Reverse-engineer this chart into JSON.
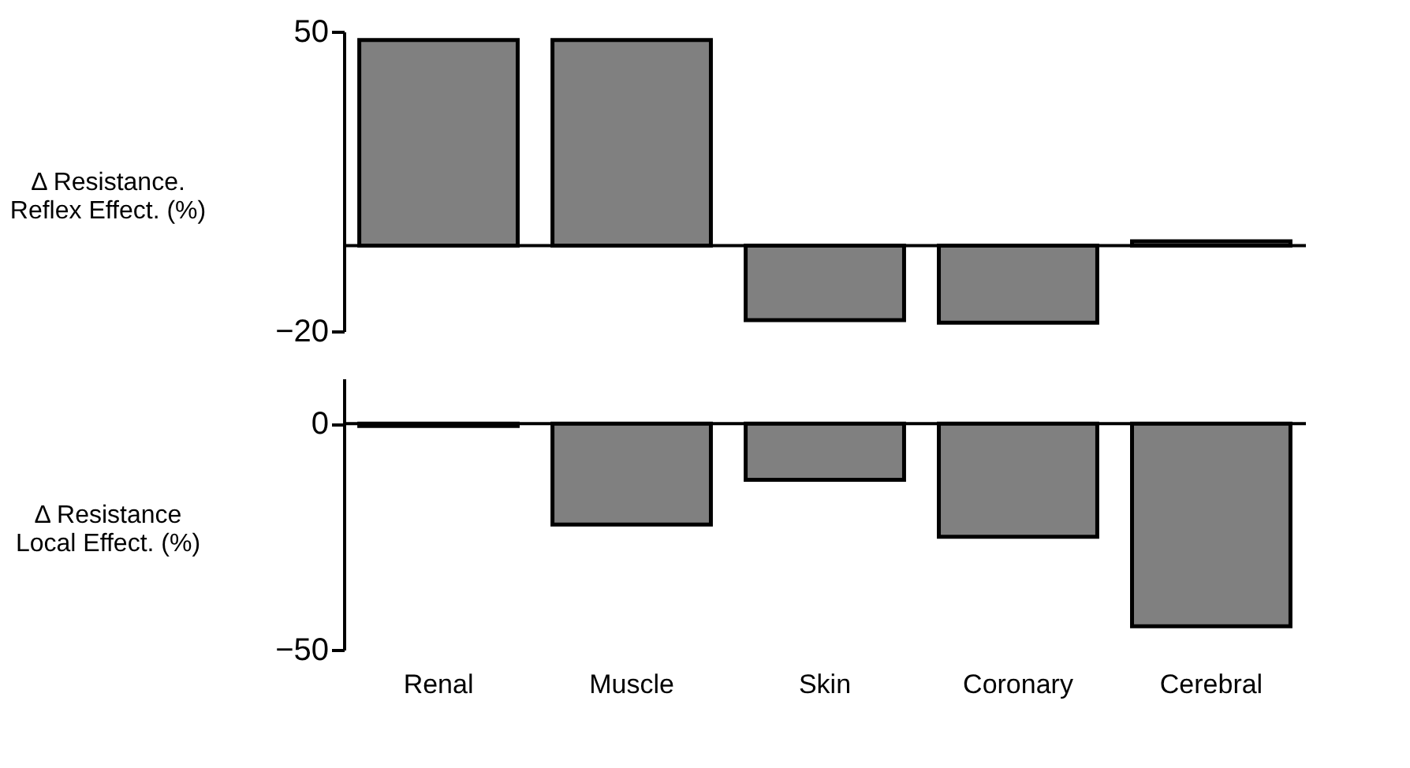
{
  "chart_data": [
    {
      "type": "bar",
      "ylabel": "Δ Resistance.\nReflex Effect. (%)",
      "categories": [
        "Renal",
        "Muscle",
        "Skin",
        "Coronary",
        "Cerebral"
      ],
      "values": [
        48,
        48,
        -17.4,
        -18,
        1
      ],
      "color": "#808080",
      "ylim": [
        -20,
        50
      ],
      "yticks": [
        -20,
        50
      ],
      "grid": false,
      "tick_labels": "y",
      "ref_lines": [
        {
          "axis": "y",
          "value": 0
        }
      ]
    },
    {
      "type": "bar",
      "ylabel": "Δ Resistance\nLocal Effect. (%)",
      "categories": [
        "Renal",
        "Muscle",
        "Skin",
        "Coronary",
        "Cerebral"
      ],
      "values": [
        -0.5,
        -22.3,
        -12.4,
        -25,
        -44.8
      ],
      "color": "#808080",
      "ylim": [
        -50,
        10
      ],
      "yticks": [
        -50,
        0
      ],
      "grid": false,
      "ref_lines": [
        {
          "axis": "y",
          "value": 0
        }
      ]
    }
  ]
}
